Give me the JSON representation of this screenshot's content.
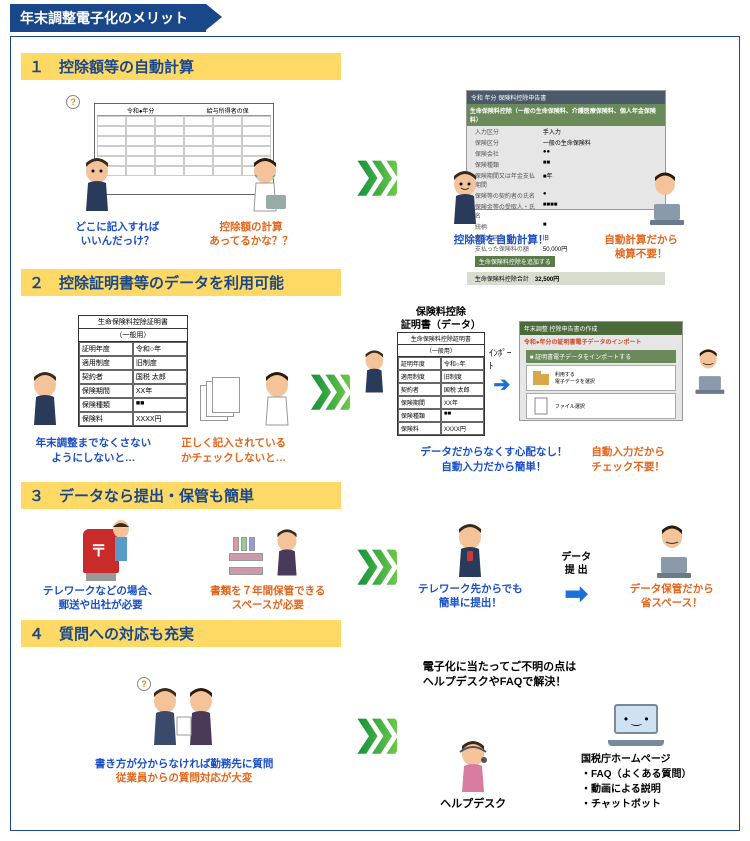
{
  "banner": "年末調整電子化のメリット",
  "sections": [
    {
      "num": "１",
      "title": "控除額等の自動計算"
    },
    {
      "num": "２",
      "title": "控除証明書等のデータを利用可能"
    },
    {
      "num": "３",
      "title": "データなら提出・保管も簡単"
    },
    {
      "num": "４",
      "title": "質問への対応も充実"
    }
  ],
  "s1": {
    "form_title_l": "令和●年分",
    "form_title_r": "給与所得者の保",
    "cap_l1": "どこに記入すれば\nいいんだっけ？",
    "cap_l2": "控除額の計算\nあってるかな？？",
    "app_bar": "生命保険料控除（一般の生命保険料、介護医療保険料、個人年金保険料）",
    "rows": [
      [
        "入力区分",
        "手入力"
      ],
      [
        "保険区分",
        "一般の生命保険料"
      ],
      [
        "保険会社",
        "●●"
      ],
      [
        "保険種類",
        "■■"
      ],
      [
        "保険期間又は年金支払期間",
        "■年"
      ],
      [
        "保険等の契約者の氏名",
        "●"
      ],
      [
        "保険金等の受取人・氏名",
        "■■■■"
      ],
      [
        "続柄",
        "■"
      ],
      [
        "新旧の区分",
        "旧"
      ],
      [
        "支払った保険料の額",
        "50,000円"
      ]
    ],
    "btn": "生命保険料控除を追加する",
    "total_l": "生命保険料控除合計",
    "total_v": "32,500円",
    "cap_r1": "控除額を自動計算！",
    "cap_r2": "自動計算だから\n検算不要！"
  },
  "s2": {
    "cert_title": "生命保険料控除証明書",
    "cert_sub": "（一般用）",
    "tbl": [
      [
        "証明年度",
        "令和○年"
      ],
      [
        "適用制度",
        "旧制度"
      ],
      [
        "契約者",
        "国税 太郎"
      ],
      [
        "保険期間",
        "XX年"
      ],
      [
        "保険種類",
        "■■"
      ],
      [
        "保険料",
        "XXXX円"
      ]
    ],
    "cap_l1": "年末調整までなくさない\nようにしないと…",
    "cap_l2": "正しく記入されている\nかチェックしないと…",
    "mid_label": "保険料控除\n証明書（データ）",
    "mid_cert_title": "生命保険料控除証明書",
    "mid_cert_sub": "（一般用）",
    "import": "ｲﾝﾎﾟｰﾄ",
    "scr_hd": "年末調整 控除申告書の作成",
    "scr_sub": "令和●年分の証明書電子データのインポート",
    "scr_gb": "■ 証明書電子データをインポートする",
    "scr_w1": "利用する\n電子データを選択",
    "scr_w2": "ファイル選択",
    "cap_r1": "データだからなくす心配なし！\n自動入力だから簡単！",
    "cap_r2": "自動入力だから\nチェック不要！",
    "tbl2": [
      [
        "証明年度",
        "令和○年"
      ],
      [
        "適用制度",
        "旧制度"
      ],
      [
        "契約者",
        "国税 太郎"
      ],
      [
        "保険期間",
        "XX年"
      ],
      [
        "保険種類",
        "■■"
      ],
      [
        "保険料",
        "XXXX円"
      ]
    ]
  },
  "s3": {
    "cap_l1": "テレワークなどの場合、\n郵送や出社が必要",
    "cap_l2": "書類を７年間保管できる\nスペースが必要",
    "mid": "データ\n提 出",
    "cap_r1": "テレワーク先からでも\n簡単に提出！",
    "cap_r2": "データ保管だから\n省スペース！"
  },
  "s4": {
    "cap_l": "書き方が分からなければ勤務先に質問\n従業員からの質問対応が大変",
    "top": "電子化に当たってご不明の点は\nヘルプデスクやFAQで解決！",
    "help": "ヘルプデスク",
    "hp_title": "国税庁ホームページ",
    "hp_items": [
      "・FAQ（よくある質問）",
      "・動画による説明",
      "・チャットボット"
    ]
  },
  "colors": {
    "blue": "#1a4fc9",
    "orange": "#e6651a"
  }
}
